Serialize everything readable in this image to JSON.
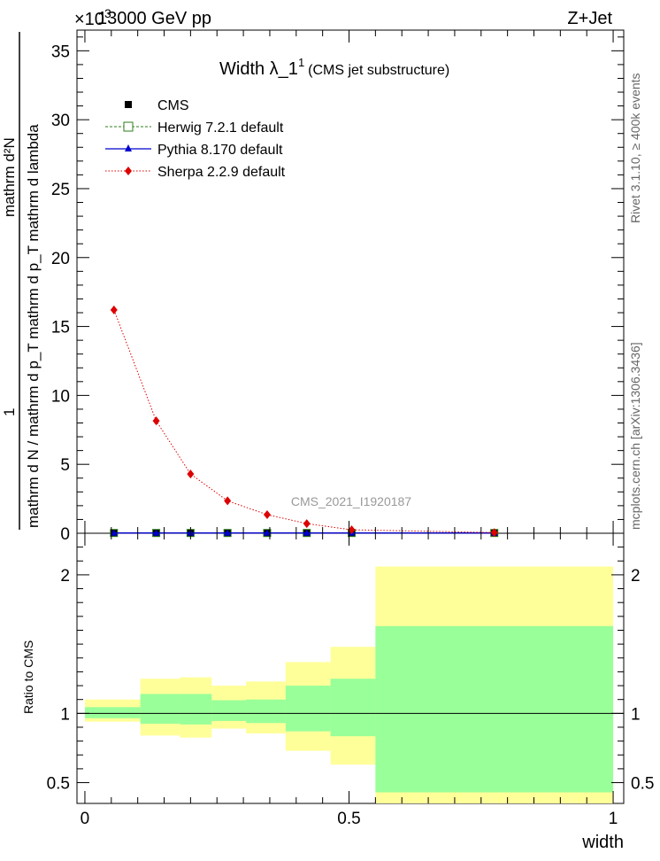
{
  "header": {
    "energy": "13000 GeV pp",
    "process": "Z+Jet",
    "exponent_marker": "×10",
    "exponent_power": "3"
  },
  "plot_title": {
    "main": "Width λ_1",
    "superscript": "1",
    "sub": "(CMS jet substructure)"
  },
  "side_labels": {
    "rivet": "Rivet 3.1.10, ≥ 400k events",
    "mcplots": "mcplots.cern.ch [arXiv:1306.3436]"
  },
  "analysis_id": "CMS_2021_I1920187",
  "y_axis_label_top": "1",
  "y_axis_label_bottom": "mathrm d N / mathrm d p_T mathrm d p_T mathrm d lambda",
  "y_axis_numerator": "mathrm d²N",
  "ratio_ylabel": "Ratio to CMS",
  "x_axis_label": "width",
  "legend": [
    {
      "label": "CMS",
      "color": "#000000",
      "marker": "square"
    },
    {
      "label": "Herwig 7.2.1 default",
      "color": "#2e7d1a",
      "marker": "open-square"
    },
    {
      "label": "Pythia 8.170 default",
      "color": "#0000cc",
      "marker": "triangle"
    },
    {
      "label": "Sherpa 2.2.9 default",
      "color": "#dd0000",
      "marker": "diamond"
    }
  ],
  "chart_data": [
    {
      "type": "line",
      "panel": "main",
      "x": [
        0.055,
        0.135,
        0.2,
        0.27,
        0.345,
        0.42,
        0.505,
        0.775
      ],
      "xlim": [
        -0.015,
        1.02
      ],
      "ylim": [
        0,
        36.5
      ],
      "y_scale_note": "×10^3",
      "yticks": [
        0,
        5,
        10,
        15,
        20,
        25,
        30,
        35
      ],
      "xticks": [
        0,
        0.5,
        1
      ],
      "series": [
        {
          "name": "CMS",
          "values": [
            0.02,
            0.02,
            0.02,
            0.02,
            0.02,
            0.02,
            0.02,
            0.02
          ]
        },
        {
          "name": "Herwig 7.2.1 default",
          "values": [
            0.02,
            0.02,
            0.02,
            0.02,
            0.02,
            0.02,
            0.02,
            0.02
          ]
        },
        {
          "name": "Pythia 8.170 default",
          "values": [
            0.02,
            0.02,
            0.02,
            0.02,
            0.02,
            0.02,
            0.02,
            0.02
          ]
        },
        {
          "name": "Sherpa 2.2.9 default",
          "values": [
            16.2,
            8.15,
            4.3,
            2.35,
            1.35,
            0.7,
            0.25,
            0.05
          ]
        }
      ]
    },
    {
      "type": "area",
      "panel": "ratio",
      "ylabel": "Ratio to CMS",
      "xlabel": "width",
      "ylim": [
        0.35,
        2.3
      ],
      "yticks": [
        0.5,
        1,
        2
      ],
      "bins": [
        {
          "lo": 0.0,
          "hi": 0.105,
          "inner": [
            0.965,
            1.045
          ],
          "outer": [
            0.94,
            1.1
          ]
        },
        {
          "lo": 0.105,
          "hi": 0.18,
          "inner": [
            0.925,
            1.14
          ],
          "outer": [
            0.84,
            1.25
          ]
        },
        {
          "lo": 0.18,
          "hi": 0.24,
          "inner": [
            0.92,
            1.14
          ],
          "outer": [
            0.825,
            1.26
          ]
        },
        {
          "lo": 0.24,
          "hi": 0.305,
          "inner": [
            0.945,
            1.095
          ],
          "outer": [
            0.89,
            1.2
          ]
        },
        {
          "lo": 0.305,
          "hi": 0.38,
          "inner": [
            0.93,
            1.1
          ],
          "outer": [
            0.855,
            1.23
          ]
        },
        {
          "lo": 0.38,
          "hi": 0.465,
          "inner": [
            0.87,
            1.2
          ],
          "outer": [
            0.73,
            1.37
          ]
        },
        {
          "lo": 0.465,
          "hi": 0.55,
          "inner": [
            0.835,
            1.25
          ],
          "outer": [
            0.63,
            1.48
          ]
        },
        {
          "lo": 0.55,
          "hi": 1.0,
          "inner": [
            0.43,
            1.63
          ],
          "outer": [
            0.35,
            2.06
          ]
        }
      ],
      "reference_line": 1
    }
  ]
}
